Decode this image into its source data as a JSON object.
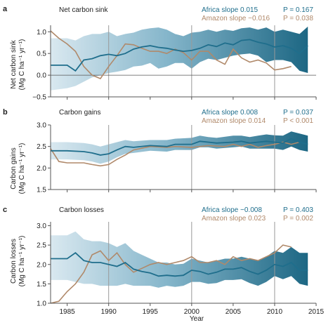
{
  "colors": {
    "africa": "#1f6e8c",
    "amazon": "#b0896a",
    "band_light": "#d7e7ef",
    "band_dark": "#115f7d",
    "axis": "#555555",
    "vline": "#999999",
    "text": "#222222"
  },
  "x_axis": {
    "label": "Year",
    "range": [
      1983,
      2015
    ],
    "ticks": [
      1985,
      1990,
      1995,
      2000,
      2005,
      2010,
      2015
    ],
    "tick_labels": [
      "1985",
      "1990",
      "1995",
      "2000",
      "2005",
      "2010",
      "2015"
    ]
  },
  "vlines": [
    1990,
    2000,
    2010
  ],
  "panels": [
    {
      "letter": "a",
      "title": "Net carbon sink",
      "ylabel_line1": "Net carbon sink",
      "ylabel_line2": "(Mg C ha⁻¹ yr⁻¹)",
      "africa_label": "Africa slope 0.015",
      "amazon_label": "Amazon slope −0.016",
      "africa_p": "P = 0.167",
      "amazon_p": "P = 0.038"
    },
    {
      "letter": "b",
      "title": "Carbon gains",
      "ylabel_line1": "Carbon gains",
      "ylabel_line2": "(Mg C ha⁻¹ yr⁻¹)",
      "africa_label": "Africa slope 0.008",
      "amazon_label": "Amazon slope 0.014",
      "africa_p": "P = 0.037",
      "amazon_p": "P < 0.001"
    },
    {
      "letter": "c",
      "title": "Carbon losses",
      "ylabel_line1": "Carbon losses",
      "ylabel_line2": "(Mg C ha⁻¹ yr⁻¹)",
      "africa_label": "Africa slope −0.008",
      "amazon_label": "Amazon slope 0.023",
      "africa_p": "P = 0.403",
      "amazon_p": "P = 0.002"
    }
  ],
  "chart_data": [
    {
      "type": "line",
      "title": "Net carbon sink",
      "xlabel": "",
      "ylabel": "Net carbon sink (Mg C ha⁻¹ yr⁻¹)",
      "xlim": [
        1983,
        2015
      ],
      "ylim": [
        -0.5,
        1.15
      ],
      "yticks": [
        -0.5,
        0.0,
        0.5,
        1.0
      ],
      "ytick_labels": [
        "−0.5",
        "0.0",
        "0.5",
        "1.0"
      ],
      "reference_line": 0.0,
      "series": [
        {
          "name": "Africa",
          "x": [
            1983,
            1985,
            1986,
            1987,
            1988,
            1989,
            1990,
            1991,
            1992,
            1993,
            1994,
            1995,
            1996,
            1997,
            1998,
            1999,
            2000,
            2001,
            2002,
            2003,
            2004,
            2005,
            2006,
            2007,
            2008,
            2009,
            2010,
            2011,
            2012,
            2013,
            2014
          ],
          "y": [
            0.23,
            0.23,
            0.1,
            0.35,
            0.38,
            0.45,
            0.48,
            0.45,
            0.5,
            0.6,
            0.65,
            0.68,
            0.64,
            0.62,
            0.58,
            0.55,
            0.57,
            0.62,
            0.7,
            0.66,
            0.74,
            0.7,
            0.8,
            0.82,
            0.76,
            0.72,
            0.65,
            0.68,
            0.62,
            0.5,
            0.68
          ],
          "ci_low": [
            -0.35,
            -0.3,
            -0.25,
            -0.15,
            -0.05,
            0.0,
            0.05,
            0.08,
            0.12,
            0.2,
            0.22,
            0.28,
            0.15,
            0.2,
            0.28,
            0.28,
            0.15,
            0.3,
            0.38,
            0.35,
            0.4,
            0.45,
            0.48,
            0.5,
            0.45,
            0.3,
            0.35,
            0.35,
            0.3,
            0.1,
            0.05
          ],
          "ci_high": [
            0.85,
            0.85,
            0.8,
            0.9,
            0.95,
            0.95,
            1.0,
            0.9,
            0.95,
            0.98,
            1.05,
            1.08,
            1.1,
            1.05,
            0.95,
            0.9,
            0.98,
            1.0,
            1.05,
            1.0,
            1.05,
            1.02,
            1.08,
            1.1,
            1.05,
            1.1,
            1.0,
            1.05,
            1.0,
            0.95,
            1.12
          ]
        },
        {
          "name": "Amazon",
          "x": [
            1983,
            1984,
            1985,
            1986,
            1987,
            1988,
            1989,
            1990,
            1991,
            1992,
            1993,
            1994,
            1995,
            1996,
            1997,
            1998,
            1999,
            2000,
            2001,
            2002,
            2003,
            2004,
            2005,
            2006,
            2007,
            2008,
            2009,
            2010,
            2011,
            2012
          ],
          "y": [
            1.02,
            0.85,
            0.72,
            0.55,
            0.2,
            0.0,
            -0.08,
            0.2,
            0.45,
            0.72,
            0.7,
            0.62,
            0.55,
            0.55,
            0.5,
            0.6,
            0.52,
            0.35,
            0.55,
            0.55,
            0.35,
            0.25,
            0.6,
            0.4,
            0.3,
            0.35,
            0.28,
            0.12,
            0.15,
            0.2
          ]
        }
      ]
    },
    {
      "type": "line",
      "title": "Carbon gains",
      "xlabel": "",
      "ylabel": "Carbon gains (Mg C ha⁻¹ yr⁻¹)",
      "xlim": [
        1983,
        2015
      ],
      "ylim": [
        1.5,
        3.0
      ],
      "yticks": [
        1.5,
        2.0,
        2.5,
        3.0
      ],
      "ytick_labels": [
        "1.5",
        "2.0",
        "2.5",
        "3.0"
      ],
      "series": [
        {
          "name": "Africa",
          "x": [
            1983,
            1985,
            1987,
            1988,
            1989,
            1990,
            1991,
            1992,
            1993,
            1995,
            1997,
            1998,
            2000,
            2001,
            2002,
            2003,
            2005,
            2006,
            2007,
            2008,
            2009,
            2010,
            2011,
            2012,
            2013,
            2014
          ],
          "y": [
            2.4,
            2.4,
            2.38,
            2.35,
            2.3,
            2.33,
            2.42,
            2.5,
            2.48,
            2.52,
            2.5,
            2.55,
            2.55,
            2.62,
            2.6,
            2.58,
            2.6,
            2.62,
            2.58,
            2.6,
            2.62,
            2.6,
            2.58,
            2.68,
            2.6,
            2.55
          ],
          "ci_low": [
            2.2,
            2.2,
            2.18,
            2.15,
            2.1,
            2.15,
            2.25,
            2.33,
            2.35,
            2.4,
            2.38,
            2.42,
            2.42,
            2.48,
            2.48,
            2.45,
            2.48,
            2.5,
            2.45,
            2.45,
            2.45,
            2.45,
            2.42,
            2.5,
            2.42,
            2.38
          ],
          "ci_high": [
            2.6,
            2.6,
            2.58,
            2.55,
            2.5,
            2.55,
            2.6,
            2.65,
            2.62,
            2.65,
            2.65,
            2.68,
            2.7,
            2.75,
            2.72,
            2.7,
            2.75,
            2.75,
            2.72,
            2.75,
            2.78,
            2.76,
            2.75,
            2.85,
            2.8,
            2.75
          ]
        },
        {
          "name": "Amazon",
          "x": [
            1983,
            1984,
            1985,
            1986,
            1987,
            1988,
            1989,
            1990,
            1991,
            1992,
            1993,
            1995,
            1997,
            1998,
            2000,
            2002,
            2004,
            2005,
            2006,
            2007,
            2008,
            2009,
            2010,
            2011,
            2012,
            2013
          ],
          "y": [
            2.45,
            2.15,
            2.12,
            2.12,
            2.12,
            2.08,
            2.05,
            2.08,
            2.2,
            2.3,
            2.42,
            2.5,
            2.48,
            2.5,
            2.48,
            2.52,
            2.5,
            2.55,
            2.5,
            2.55,
            2.48,
            2.52,
            2.55,
            2.6,
            2.55,
            2.6
          ]
        }
      ]
    },
    {
      "type": "line",
      "title": "Carbon losses",
      "xlabel": "Year",
      "ylabel": "Carbon losses (Mg C ha⁻¹ yr⁻¹)",
      "xlim": [
        1983,
        2015
      ],
      "ylim": [
        1.0,
        3.1
      ],
      "yticks": [
        1.0,
        1.5,
        2.0,
        2.5,
        3.0
      ],
      "ytick_labels": [
        "1.0",
        "1.5",
        "2.0",
        "2.5",
        "3.0"
      ],
      "series": [
        {
          "name": "Africa",
          "x": [
            1983,
            1985,
            1986,
            1987,
            1988,
            1989,
            1990,
            1991,
            1992,
            1993,
            1994,
            1995,
            1996,
            1997,
            1998,
            1999,
            2000,
            2001,
            2002,
            2003,
            2004,
            2005,
            2006,
            2007,
            2008,
            2009,
            2010,
            2011,
            2012,
            2013,
            2014
          ],
          "y": [
            2.15,
            2.15,
            2.3,
            2.1,
            2.05,
            2.05,
            2.0,
            1.95,
            2.05,
            1.88,
            1.82,
            1.78,
            1.7,
            1.72,
            1.7,
            1.72,
            1.85,
            1.82,
            1.75,
            1.8,
            1.88,
            1.88,
            1.92,
            1.82,
            1.75,
            1.85,
            2.0,
            1.95,
            2.05,
            1.85,
            1.85
          ],
          "ci_low": [
            1.6,
            1.6,
            1.55,
            1.5,
            1.5,
            1.45,
            1.45,
            1.45,
            1.5,
            1.45,
            1.45,
            1.45,
            1.4,
            1.45,
            1.42,
            1.45,
            1.55,
            1.55,
            1.5,
            1.52,
            1.6,
            1.6,
            1.62,
            1.52,
            1.45,
            1.55,
            1.7,
            1.62,
            1.7,
            1.5,
            1.45
          ],
          "ci_high": [
            2.75,
            2.75,
            2.85,
            2.65,
            2.6,
            2.6,
            2.55,
            2.45,
            2.55,
            2.35,
            2.25,
            2.15,
            2.05,
            2.05,
            2.0,
            2.02,
            2.15,
            2.1,
            2.05,
            2.1,
            2.15,
            2.15,
            2.2,
            2.15,
            2.1,
            2.2,
            2.35,
            2.3,
            2.45,
            2.3,
            2.3
          ]
        },
        {
          "name": "Amazon",
          "x": [
            1983,
            1984,
            1985,
            1986,
            1987,
            1988,
            1989,
            1990,
            1991,
            1992,
            1993,
            1994,
            1995,
            1996,
            1997,
            1998,
            1999,
            2000,
            2001,
            2002,
            2003,
            2004,
            2005,
            2006,
            2007,
            2008,
            2009,
            2010,
            2011,
            2012
          ],
          "y": [
            1.0,
            1.05,
            1.3,
            1.5,
            1.8,
            2.25,
            2.35,
            2.1,
            2.3,
            2.0,
            1.8,
            1.9,
            2.0,
            2.05,
            2.0,
            2.05,
            2.1,
            2.2,
            2.05,
            2.05,
            2.1,
            2.0,
            2.2,
            2.1,
            2.15,
            2.1,
            2.2,
            2.3,
            2.5,
            2.45
          ]
        }
      ]
    }
  ]
}
